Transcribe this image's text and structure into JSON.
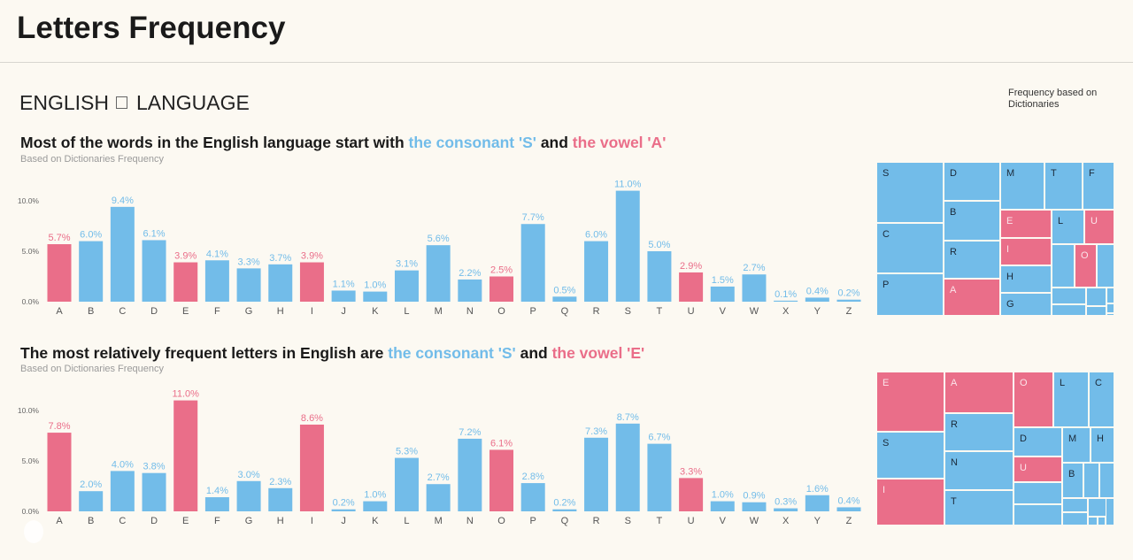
{
  "header": {
    "title": "Letters Frequency"
  },
  "language": {
    "left": "ENGLISH",
    "right": "LANGUAGE"
  },
  "legend": {
    "text": "Frequency based on Dictionaries"
  },
  "colors": {
    "consonant": "#72bce9",
    "vowel": "#ea6e89",
    "background": "#fcf9f2"
  },
  "chart_data": [
    {
      "type": "bar",
      "title_parts": [
        "Most of the words in the English language start with ",
        "the consonant 'S'",
        " and ",
        "the vowel 'A'"
      ],
      "subtitle": "Based on Dictionaries Frequency",
      "categories": [
        "A",
        "B",
        "C",
        "D",
        "E",
        "F",
        "G",
        "H",
        "I",
        "J",
        "K",
        "L",
        "M",
        "N",
        "O",
        "P",
        "Q",
        "R",
        "S",
        "T",
        "U",
        "V",
        "W",
        "X",
        "Y",
        "Z"
      ],
      "values": [
        5.7,
        6.0,
        9.4,
        6.1,
        3.9,
        4.1,
        3.3,
        3.7,
        3.9,
        1.1,
        1.0,
        3.1,
        5.6,
        2.2,
        2.5,
        7.7,
        0.5,
        6.0,
        11.0,
        5.0,
        2.9,
        1.5,
        2.7,
        0.1,
        0.4,
        0.2
      ],
      "labels": [
        "5.7%",
        "6.0%",
        "9.4%",
        "6.1%",
        "3.9%",
        "4.1%",
        "3.3%",
        "3.7%",
        "3.9%",
        "1.1%",
        "1.0%",
        "3.1%",
        "5.6%",
        "2.2%",
        "2.5%",
        "7.7%",
        "0.5%",
        "6.0%",
        "11.0%",
        "5.0%",
        "2.9%",
        "1.5%",
        "2.7%",
        "0.1%",
        "0.4%",
        "0.2%"
      ],
      "vowels": [
        "A",
        "E",
        "I",
        "O",
        "U"
      ],
      "yticks": [
        "0.0%",
        "5.0%",
        "10.0%"
      ],
      "ylim": [
        0,
        12
      ],
      "treemap_labels": [
        "S",
        "C",
        "P",
        "D",
        "B",
        "R",
        "A",
        "M",
        "T",
        "F",
        "E",
        "I",
        "H",
        "G",
        "L",
        "U",
        "O"
      ]
    },
    {
      "type": "bar",
      "title_parts": [
        "The most relatively frequent letters in English are ",
        "the consonant 'S'",
        " and ",
        "the vowel 'E'"
      ],
      "subtitle": "Based on Dictionaries Frequency",
      "categories": [
        "A",
        "B",
        "C",
        "D",
        "E",
        "F",
        "G",
        "H",
        "I",
        "J",
        "K",
        "L",
        "M",
        "N",
        "O",
        "P",
        "Q",
        "R",
        "S",
        "T",
        "U",
        "V",
        "W",
        "X",
        "Y",
        "Z"
      ],
      "values": [
        7.8,
        2.0,
        4.0,
        3.8,
        11.0,
        1.4,
        3.0,
        2.3,
        8.6,
        0.2,
        1.0,
        5.3,
        2.7,
        7.2,
        6.1,
        2.8,
        0.2,
        7.3,
        8.7,
        6.7,
        3.3,
        1.0,
        0.9,
        0.3,
        1.6,
        0.4
      ],
      "labels": [
        "7.8%",
        "2.0%",
        "4.0%",
        "3.8%",
        "11.0%",
        "1.4%",
        "3.0%",
        "2.3%",
        "8.6%",
        "0.2%",
        "1.0%",
        "5.3%",
        "2.7%",
        "7.2%",
        "6.1%",
        "2.8%",
        "0.2%",
        "7.3%",
        "8.7%",
        "6.7%",
        "3.3%",
        "1.0%",
        "0.9%",
        "0.3%",
        "1.6%",
        "0.4%"
      ],
      "vowels": [
        "A",
        "E",
        "I",
        "O",
        "U"
      ],
      "yticks": [
        "0.0%",
        "5.0%",
        "10.0%"
      ],
      "ylim": [
        0,
        12
      ],
      "treemap_labels": [
        "E",
        "S",
        "I",
        "A",
        "R",
        "N",
        "T",
        "O",
        "L",
        "C",
        "D",
        "U",
        "M",
        "H",
        "B"
      ]
    }
  ]
}
